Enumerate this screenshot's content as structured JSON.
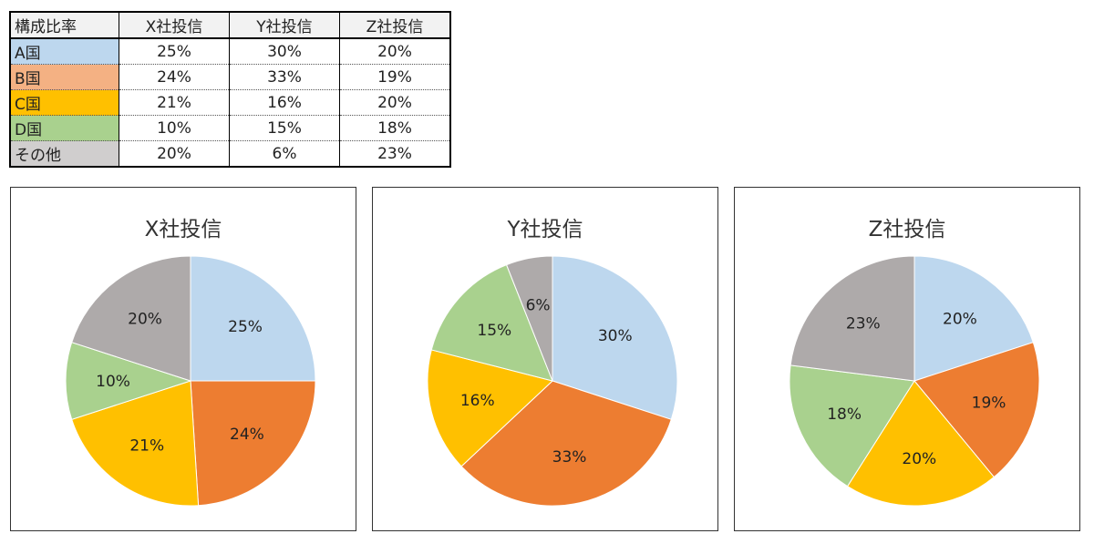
{
  "table": {
    "headers": [
      "構成比率",
      "X社投信",
      "Y社投信",
      "Z社投信"
    ],
    "rows": [
      {
        "label": "A国",
        "color": "#bdd7ee",
        "values": [
          "25%",
          "30%",
          "20%"
        ]
      },
      {
        "label": "B国",
        "color": "#f4b183",
        "values": [
          "24%",
          "33%",
          "19%"
        ]
      },
      {
        "label": "C国",
        "color": "#ffc000",
        "values": [
          "21%",
          "16%",
          "20%"
        ]
      },
      {
        "label": "D国",
        "color": "#a9d18e",
        "values": [
          "10%",
          "15%",
          "18%"
        ]
      },
      {
        "label": "その他",
        "color": "#d0cece",
        "values": [
          "20%",
          "6%",
          "23%"
        ]
      }
    ]
  },
  "chart_data": [
    {
      "type": "pie",
      "title": "X社投信",
      "categories": [
        "A国",
        "B国",
        "C国",
        "D国",
        "その他"
      ],
      "values": [
        25,
        24,
        21,
        10,
        20
      ],
      "labels": [
        "25%",
        "24%",
        "21%",
        "10%",
        "20%"
      ],
      "colors": [
        "#bdd7ee",
        "#ed7d31",
        "#ffc000",
        "#a9d18e",
        "#aeaaaa"
      ]
    },
    {
      "type": "pie",
      "title": "Y社投信",
      "categories": [
        "A国",
        "B国",
        "C国",
        "D国",
        "その他"
      ],
      "values": [
        30,
        33,
        16,
        15,
        6
      ],
      "labels": [
        "30%",
        "33%",
        "16%",
        "15%",
        "6%"
      ],
      "colors": [
        "#bdd7ee",
        "#ed7d31",
        "#ffc000",
        "#a9d18e",
        "#aeaaaa"
      ]
    },
    {
      "type": "pie",
      "title": "Z社投信",
      "categories": [
        "A国",
        "B国",
        "C国",
        "D国",
        "その他"
      ],
      "values": [
        20,
        19,
        20,
        18,
        23
      ],
      "labels": [
        "20%",
        "19%",
        "20%",
        "18%",
        "23%"
      ],
      "colors": [
        "#bdd7ee",
        "#ed7d31",
        "#ffc000",
        "#a9d18e",
        "#aeaaaa"
      ]
    }
  ]
}
